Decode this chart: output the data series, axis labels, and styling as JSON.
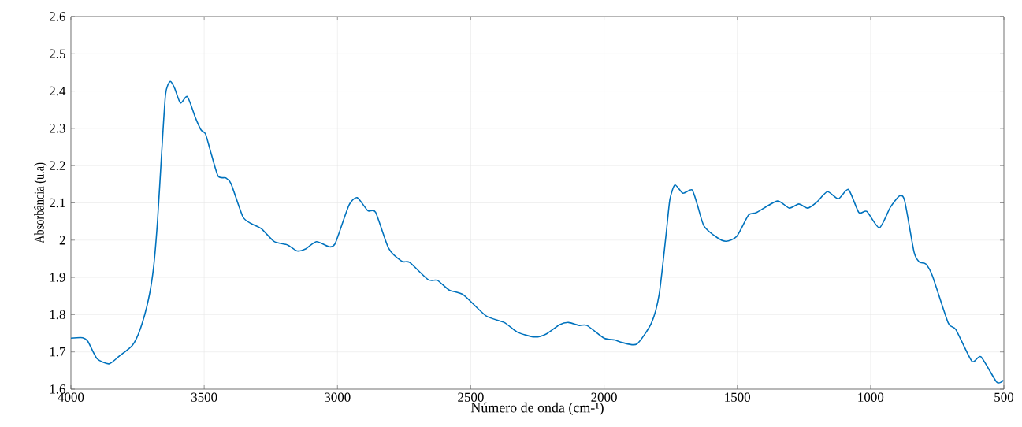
{
  "chart_data": {
    "type": "line",
    "xlabel": "Número de onda (cm-¹)",
    "ylabel": "Absorbância (u.a)",
    "xlim": [
      4000,
      500
    ],
    "ylim": [
      1.6,
      2.6
    ],
    "xticks": [
      4000,
      3500,
      3000,
      2500,
      2000,
      1500,
      1000,
      500
    ],
    "yticks": [
      1.6,
      1.7,
      1.8,
      1.9,
      2,
      2.1,
      2.2,
      2.3,
      2.4,
      2.5,
      2.6
    ],
    "grid": true,
    "marker": "none",
    "line_style": "solid",
    "series": [
      {
        "color": "#0072bd",
        "x": [
          4000,
          3956,
          3936,
          3902,
          3857,
          3818,
          3769,
          3739,
          3709,
          3690,
          3675,
          3660,
          3645,
          3628,
          3611,
          3589,
          3563,
          3532,
          3512,
          3495,
          3478,
          3448,
          3419,
          3399,
          3355,
          3325,
          3286,
          3237,
          3187,
          3152,
          3118,
          3079,
          3030,
          3010,
          2995,
          2956,
          2926,
          2886,
          2857,
          2808,
          2758,
          2729,
          2660,
          2625,
          2581,
          2527,
          2443,
          2374,
          2325,
          2261,
          2217,
          2167,
          2133,
          2093,
          2064,
          2000,
          1960,
          1931,
          1877,
          1822,
          1793,
          1768,
          1753,
          1734,
          1704,
          1670,
          1650,
          1625,
          1576,
          1542,
          1502,
          1458,
          1428,
          1350,
          1305,
          1269,
          1236,
          1202,
          1162,
          1121,
          1083,
          1044,
          1014,
          967,
          926,
          891,
          872,
          837,
          817,
          793,
          768,
          709,
          680,
          620,
          586,
          527,
          502
        ],
        "values": [
          1.737,
          1.738,
          1.728,
          1.682,
          1.668,
          1.689,
          1.718,
          1.763,
          1.841,
          1.926,
          2.052,
          2.229,
          2.391,
          2.426,
          2.408,
          2.368,
          2.385,
          2.327,
          2.296,
          2.285,
          2.243,
          2.172,
          2.167,
          2.151,
          2.063,
          2.045,
          2.031,
          1.996,
          1.987,
          1.971,
          1.977,
          1.996,
          1.982,
          1.989,
          2.017,
          2.095,
          2.114,
          2.079,
          2.075,
          1.978,
          1.943,
          1.94,
          1.894,
          1.892,
          1.866,
          1.853,
          1.797,
          1.779,
          1.753,
          1.74,
          1.748,
          1.773,
          1.779,
          1.771,
          1.771,
          1.737,
          1.732,
          1.725,
          1.721,
          1.778,
          1.855,
          2.01,
          2.109,
          2.148,
          2.126,
          2.135,
          2.095,
          2.038,
          2.007,
          1.997,
          2.01,
          2.067,
          2.074,
          2.105,
          2.086,
          2.097,
          2.086,
          2.102,
          2.13,
          2.111,
          2.136,
          2.074,
          2.077,
          2.033,
          2.088,
          2.119,
          2.105,
          1.968,
          1.941,
          1.936,
          1.904,
          1.778,
          1.76,
          1.675,
          1.687,
          1.619,
          1.624
        ]
      }
    ]
  }
}
